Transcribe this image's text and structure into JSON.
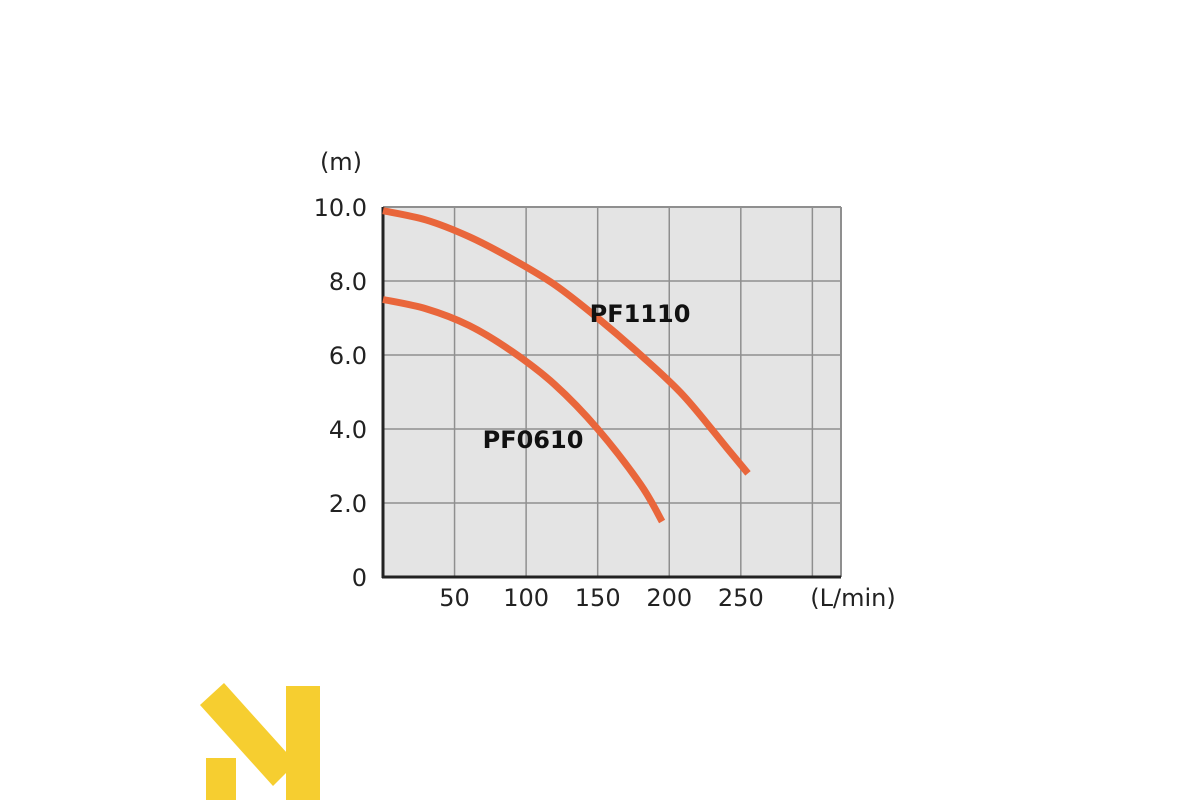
{
  "chart_data": {
    "type": "line",
    "title": "",
    "xlabel": "(L/min)",
    "ylabel": "(m)",
    "xlim": [
      0,
      320
    ],
    "ylim": [
      0,
      10
    ],
    "x_ticks": [
      50,
      100,
      150,
      200,
      250
    ],
    "x_tick_labels": [
      "50",
      "100",
      "150",
      "200",
      "250"
    ],
    "y_ticks": [
      0,
      2,
      4,
      6,
      8,
      10
    ],
    "y_tick_labels": [
      "0",
      "2.0",
      "4.0",
      "6.0",
      "8.0",
      "10.0"
    ],
    "grid": true,
    "series": [
      {
        "name": "PF1110",
        "x": [
          0,
          30,
          60,
          90,
          120,
          150,
          180,
          210,
          240,
          255
        ],
        "y": [
          9.9,
          9.65,
          9.2,
          8.6,
          7.9,
          7.0,
          6.0,
          4.9,
          3.5,
          2.8
        ]
      },
      {
        "name": "PF0610",
        "x": [
          0,
          30,
          60,
          90,
          120,
          150,
          180,
          195
        ],
        "y": [
          7.5,
          7.25,
          6.8,
          6.1,
          5.2,
          4.0,
          2.5,
          1.5
        ]
      }
    ],
    "line_color": "#e9663b",
    "plot_background": "#e4e4e4",
    "grid_color": "#8f8f8f"
  },
  "logo": {
    "icon": "n-mark-logo",
    "color": "#f6ce30"
  }
}
